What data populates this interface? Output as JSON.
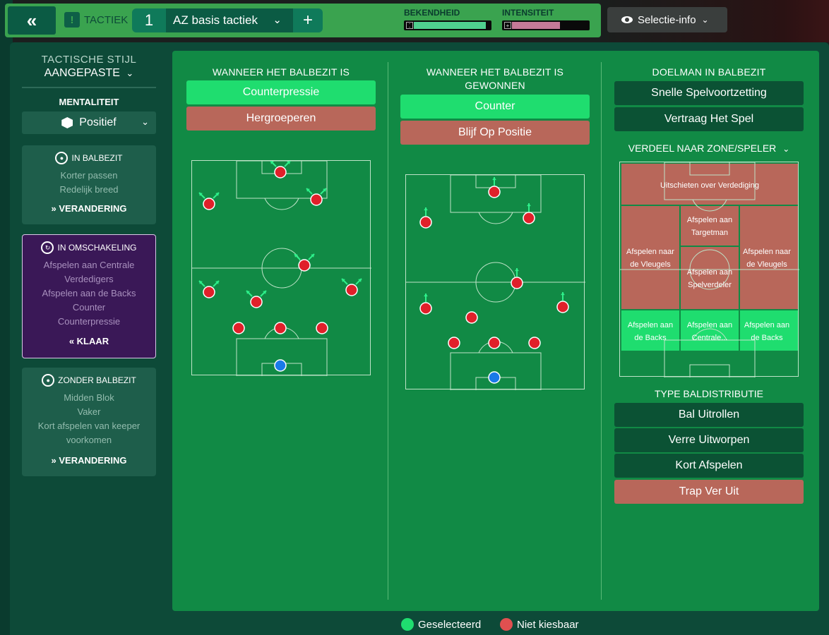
{
  "topbar": {
    "tactic_label": "TACTIEK",
    "tactic_slot": "1",
    "tactic_name": "AZ basis tactiek",
    "bekendheid_label": "BEKENDHEID",
    "bekendheid_value": 0.94,
    "bekendheid_color": "#4fd08f",
    "intensiteit_label": "INTENSITEIT",
    "intensiteit_value": 0.63,
    "intensiteit_color": "#c47a98",
    "selectie_info": "Selectie-info",
    "icons": [
      "double-chevron-left-icon",
      "alert-icon",
      "plus-icon",
      "eye-icon",
      "chevron-down-icon"
    ]
  },
  "left": {
    "tactical_style_title": "TACTISCHE STIJL",
    "tactical_style_value": "AANGEPASTE",
    "mentality_title": "MENTALITEIT",
    "mentality_value": "Positief",
    "in_possession": {
      "title": "IN BALBEZIT",
      "lines": [
        "Korter passen",
        "Redelijk breed"
      ],
      "action": "VERANDERING"
    },
    "in_transition": {
      "title": "IN OMSCHAKELING",
      "lines": [
        "Afspelen aan Centrale",
        "Verdedigers",
        "Afspelen aan de Backs",
        "Counter",
        "Counterpressie"
      ],
      "action": "KLAAR"
    },
    "out_of_possession": {
      "title": "ZONDER BALBEZIT",
      "lines": [
        "Midden Blok",
        "Vaker",
        "Kort afspelen van keeper",
        "voorkomen"
      ],
      "action": "VERANDERING"
    }
  },
  "col1": {
    "title": "WANNEER HET BALBEZIT IS VERLOREN",
    "buttons": [
      {
        "label": "Counterpressie",
        "state": "selected"
      },
      {
        "label": "Hergroeperen",
        "state": "unavailable"
      }
    ]
  },
  "col2": {
    "title_line1": "WANNEER HET BALBEZIT IS",
    "title_line2": "GEWONNEN",
    "buttons": [
      {
        "label": "Counter",
        "state": "selected"
      },
      {
        "label": "Blijf Op Positie",
        "state": "unavailable"
      }
    ]
  },
  "col3": {
    "title": "DOELMAN IN BALBEZIT",
    "buttons": [
      {
        "label": "Snelle Spelvoortzetting",
        "state": "normal"
      },
      {
        "label": "Vertraag Het Spel",
        "state": "normal"
      }
    ],
    "zone_title": "VERDEEL NAAR ZONE/SPELER",
    "zones": {
      "top": "Uitschieten over Verdediging",
      "left_wing": "Afspelen naar de Vleugels",
      "right_wing": "Afspelen naar de Vleugels",
      "targetman": "Afspelen aan Targetman",
      "playmaker": "Afspelen aan Spelverdeler",
      "left_back": "Afspelen aan de Backs",
      "centre": "Afspelen aan Centrale...",
      "right_back": "Afspelen aan de Backs"
    },
    "distribution_title": "TYPE BALDISTRIBUTIE",
    "distribution_buttons": [
      {
        "label": "Bal Uitrollen",
        "state": "normal"
      },
      {
        "label": "Verre Uitworpen",
        "state": "normal"
      },
      {
        "label": "Kort Afspelen",
        "state": "normal"
      },
      {
        "label": "Trap Ver Uit",
        "state": "unavailable"
      }
    ]
  },
  "legend": {
    "selected": "Geselecteerd",
    "unavailable": "Niet kiesbaar",
    "selected_color": "#1fdd6f",
    "unavailable_color": "#e05050"
  },
  "colors": {
    "player": "#e0202a",
    "goalkeeper": "#1a7ae8",
    "arrow": "#2ef08a",
    "pitch": "#118a45",
    "panel": "#0d4a38"
  }
}
